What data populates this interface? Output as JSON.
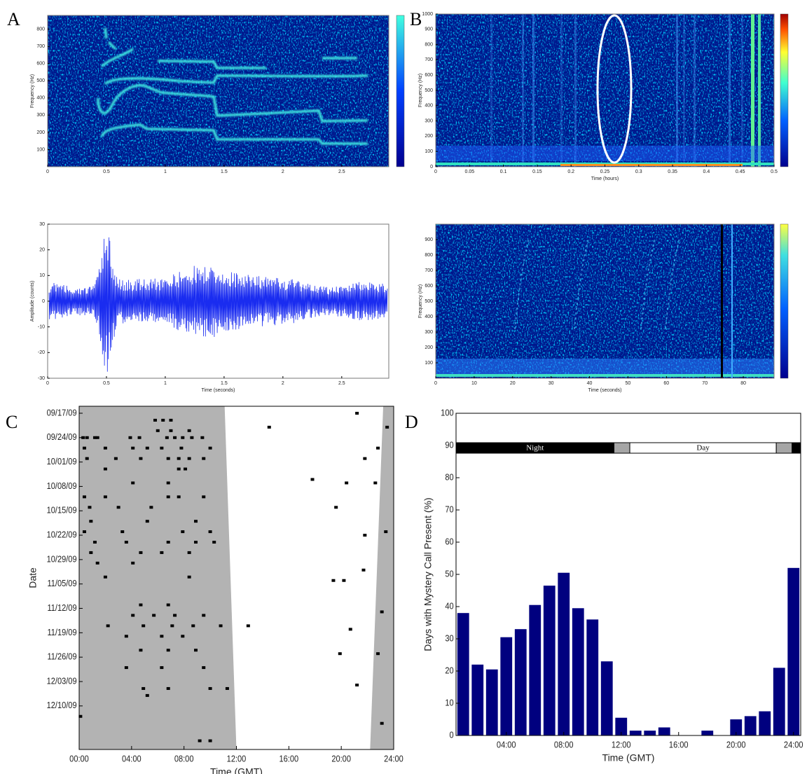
{
  "chart_data": [
    {
      "type": "spectrogram",
      "panel": "A",
      "xlim": [
        0,
        2.9
      ],
      "xticks": [
        0,
        0.5,
        1,
        1.5,
        2,
        2.5
      ],
      "ylim": [
        0,
        880
      ],
      "yticks": [
        100,
        200,
        300,
        400,
        500,
        600,
        700,
        800
      ],
      "ylabel": "Frequency (Hz)"
    },
    {
      "type": "waveform",
      "xlim": [
        0,
        2.9
      ],
      "xticks": [
        0,
        0.5,
        1,
        1.5,
        2,
        2.5
      ],
      "ylim": [
        -30,
        30
      ],
      "yticks": [
        -30,
        -20,
        -10,
        0,
        10,
        20,
        30
      ],
      "xlabel": "Time (seconds)",
      "ylabel": "Amplitude (counts)"
    },
    {
      "type": "spectrogram",
      "panel": "B",
      "xlim": [
        0,
        0.5
      ],
      "xticks": [
        0,
        0.05,
        0.1,
        0.15,
        0.2,
        0.25,
        0.3,
        0.35,
        0.4,
        0.45,
        0.5
      ],
      "ylim": [
        0,
        1000
      ],
      "yticks": [
        0,
        100,
        200,
        300,
        400,
        500,
        600,
        700,
        800,
        900,
        1000
      ],
      "xlabel": "Time (hours)",
      "ylabel": "Frequency (Hz)"
    },
    {
      "type": "spectrogram",
      "xlim": [
        0,
        88
      ],
      "xticks": [
        0,
        10,
        20,
        30,
        40,
        50,
        60,
        70,
        80
      ],
      "ylim": [
        0,
        1000
      ],
      "yticks": [
        100,
        200,
        300,
        400,
        500,
        600,
        700,
        800,
        900
      ],
      "xlabel": "Time (seconds)",
      "ylabel": "Frequency (Hz)"
    },
    {
      "type": "scatter",
      "panel": "C",
      "xlabel": "Time (GMT)",
      "ylabel": "Date",
      "xlim": [
        0,
        24
      ],
      "xticks": [
        {
          "value": 0,
          "label": "00:00"
        },
        {
          "value": 4,
          "label": "04:00"
        },
        {
          "value": 8,
          "label": "08:00"
        },
        {
          "value": 12,
          "label": "12:00"
        },
        {
          "value": 16,
          "label": "16:00"
        },
        {
          "value": 20,
          "label": "20:00"
        },
        {
          "value": 24,
          "label": "24:00"
        }
      ],
      "ylim": [
        -2,
        96.5
      ],
      "y_inverted": true,
      "yticks": [
        {
          "value": 0,
          "label": "09/17/09"
        },
        {
          "value": 7,
          "label": "09/24/09"
        },
        {
          "value": 14,
          "label": "10/01/09"
        },
        {
          "value": 21,
          "label": "10/08/09"
        },
        {
          "value": 28,
          "label": "10/15/09"
        },
        {
          "value": 35,
          "label": "10/22/09"
        },
        {
          "value": 42,
          "label": "10/29/09"
        },
        {
          "value": 49,
          "label": "11/05/09"
        },
        {
          "value": 56,
          "label": "11/12/09"
        },
        {
          "value": 63,
          "label": "11/19/09"
        },
        {
          "value": 70,
          "label": "11/26/09"
        },
        {
          "value": 77,
          "label": "12/03/09"
        },
        {
          "value": 84,
          "label": "12/10/09"
        }
      ],
      "night_end": [
        11.1,
        12.0
      ],
      "night_start": [
        23.2,
        22.2
      ],
      "shade_color": "#b3b3b3",
      "color": "#000000",
      "x": [
        5.8,
        6.4,
        7.0,
        6,
        7,
        8.4,
        0.3,
        0.6,
        1.2,
        1.4,
        3.9,
        4.6,
        6.7,
        7.3,
        7.9,
        8.6,
        9.4,
        0.4,
        2,
        4.1,
        5.2,
        6.3,
        7.8,
        10,
        0.6,
        2.8,
        4.7,
        6.8,
        7.6,
        8.4,
        9.5,
        2,
        7.6,
        8.1,
        4.1,
        6.8,
        0.4,
        2,
        6.8,
        7.6,
        9.5,
        0.8,
        3.0,
        5.5,
        0.9,
        5.2,
        8.9,
        0.4,
        3.3,
        7.9,
        10,
        1.2,
        3.6,
        6.8,
        8.9,
        10.3,
        0.9,
        4.7,
        6.3,
        8.4,
        1.4,
        4.1,
        2,
        8.4,
        4.7,
        6.8,
        4.1,
        5.7,
        7.3,
        9.5,
        2.2,
        4.9,
        7.1,
        8.7,
        10.8,
        3.6,
        6.3,
        7.9,
        4.7,
        6.8,
        8.9,
        3.6,
        6.3,
        9.5,
        4.9,
        6.8,
        10,
        11.3,
        5.2,
        0.1,
        9.2,
        10,
        21.2,
        14.5,
        21.8,
        20.4,
        17.8,
        19.6,
        22.8,
        22.6,
        21.8,
        19.4,
        20.2,
        21.7,
        20.7,
        19.9,
        21.2,
        12.9,
        23.1,
        23.4,
        22.8,
        23.1,
        23.5
      ],
      "values": [
        2,
        2,
        2,
        5,
        5,
        5,
        7,
        7,
        7,
        7,
        7,
        7,
        7,
        7,
        7,
        7,
        7,
        10,
        10,
        10,
        10,
        10,
        10,
        10,
        13,
        13,
        13,
        13,
        13,
        13,
        13,
        16,
        16,
        16,
        20,
        20,
        24,
        24,
        24,
        24,
        24,
        27,
        27,
        27,
        31,
        31,
        31,
        34,
        34,
        34,
        34,
        37,
        37,
        37,
        37,
        37,
        40,
        40,
        40,
        40,
        43,
        43,
        47,
        47,
        55,
        55,
        58,
        58,
        58,
        58,
        61,
        61,
        61,
        61,
        61,
        64,
        64,
        64,
        68,
        68,
        68,
        73,
        73,
        73,
        79,
        79,
        79,
        79,
        81,
        87,
        94,
        94,
        0,
        4,
        13,
        20,
        19,
        27,
        10,
        20,
        35,
        48,
        48,
        45,
        62,
        69,
        78,
        61,
        57,
        34,
        69,
        89,
        4
      ]
    },
    {
      "type": "bar",
      "panel": "D",
      "xlabel": "Time (GMT)",
      "ylabel": "Days with Mystery Call Present (%)",
      "color": "#00007f",
      "xlim": [
        0.5,
        24.5
      ],
      "xticks": [
        {
          "value": 4,
          "label": "04:00"
        },
        {
          "value": 8,
          "label": "08:00"
        },
        {
          "value": 12,
          "label": "12:00"
        },
        {
          "value": 16,
          "label": "16:00"
        },
        {
          "value": 20,
          "label": "20:00"
        },
        {
          "value": 24,
          "label": "24:00"
        }
      ],
      "ylim": [
        0,
        100
      ],
      "yticks": [
        0,
        10,
        20,
        30,
        40,
        50,
        60,
        70,
        80,
        90,
        100
      ],
      "x": [
        1,
        2,
        3,
        4,
        5,
        6,
        7,
        8,
        9,
        10,
        11,
        12,
        13,
        14,
        15,
        16,
        17,
        18,
        19,
        20,
        21,
        22,
        23,
        24
      ],
      "values": [
        38,
        22,
        20.5,
        30.5,
        33,
        40.5,
        46.5,
        50.5,
        39.5,
        36,
        23,
        5.5,
        1.5,
        1.5,
        2.5,
        0,
        0,
        1.5,
        0,
        5,
        6,
        7.5,
        21,
        52
      ],
      "bands": [
        {
          "start": 0.5,
          "end": 11.5,
          "color": "#000000",
          "label": "Night"
        },
        {
          "start": 11.5,
          "end": 12.6,
          "color": "#a6a6a6"
        },
        {
          "start": 12.6,
          "end": 22.8,
          "color": "#ffffff",
          "label": "Day"
        },
        {
          "start": 22.8,
          "end": 23.9,
          "color": "#a6a6a6"
        },
        {
          "start": 23.9,
          "end": 24.5,
          "color": "#000000"
        }
      ]
    }
  ]
}
